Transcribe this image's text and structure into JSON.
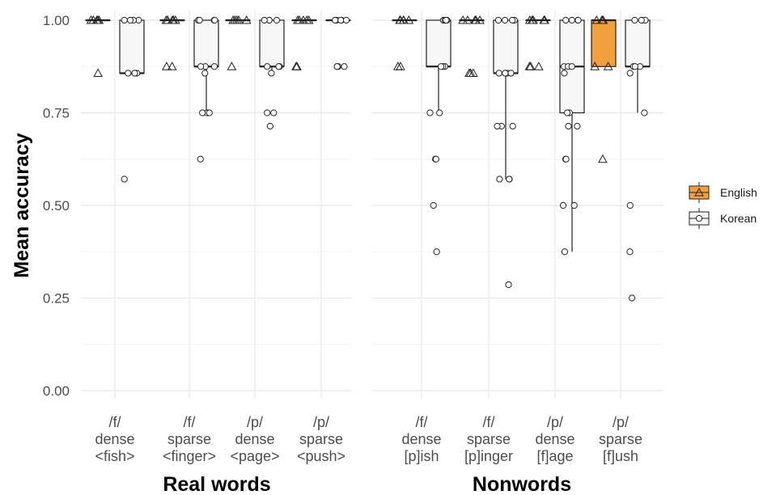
{
  "chart_data": {
    "type": "boxplot",
    "ylabel": "Mean accuracy",
    "ylim": [
      0,
      1.0
    ],
    "yticks": [
      "0.00",
      "0.25",
      "0.50",
      "0.75",
      "1.00"
    ],
    "grid": true,
    "legend_position": "right",
    "series": [
      {
        "name": "English",
        "color": "#f2a03d",
        "marker": "triangle"
      },
      {
        "name": "Korean",
        "color": "#f7f7f7",
        "marker": "circle"
      }
    ],
    "panels": [
      {
        "title": "Real words",
        "categories": [
          {
            "lines": [
              "/f/",
              "dense",
              "<fish>"
            ],
            "English": {
              "q1": 1.0,
              "median": 1.0,
              "q3": 1.0,
              "whisker_low": 1.0,
              "whisker_high": 1.0,
              "points": [
                1,
                1,
                1,
                1,
                1,
                0.857
              ]
            },
            "Korean": {
              "q1": 0.857,
              "median": 0.857,
              "q3": 1.0,
              "whisker_low": 0.857,
              "whisker_high": 1.0,
              "points": [
                1,
                1,
                1,
                1,
                0.857,
                0.857,
                0.857,
                0.571
              ]
            }
          },
          {
            "lines": [
              "/f/",
              "sparse",
              "<finger>"
            ],
            "English": {
              "q1": 1.0,
              "median": 1.0,
              "q3": 1.0,
              "whisker_low": 1.0,
              "whisker_high": 1.0,
              "points": [
                1,
                1,
                1,
                1,
                1,
                0.875,
                0.875
              ]
            },
            "Korean": {
              "q1": 0.875,
              "median": 0.875,
              "q3": 1.0,
              "whisker_low": 0.75,
              "whisker_high": 1.0,
              "points": [
                1,
                1,
                1,
                1,
                0.875,
                0.875,
                0.875,
                0.857,
                0.75,
                0.75,
                0.75,
                0.625
              ]
            }
          },
          {
            "lines": [
              "/p/",
              "dense",
              "<page>"
            ],
            "English": {
              "q1": 1.0,
              "median": 1.0,
              "q3": 1.0,
              "whisker_low": 1.0,
              "whisker_high": 1.0,
              "points": [
                1,
                1,
                1,
                1,
                1,
                0.875
              ]
            },
            "Korean": {
              "q1": 0.875,
              "median": 0.875,
              "q3": 1.0,
              "whisker_low": 0.857,
              "whisker_high": 1.0,
              "points": [
                1,
                1,
                1,
                1,
                0.875,
                0.875,
                0.875,
                0.857,
                0.75,
                0.75,
                0.714
              ]
            }
          },
          {
            "lines": [
              "/p/",
              "sparse",
              "<push>"
            ],
            "English": {
              "q1": 1.0,
              "median": 1.0,
              "q3": 1.0,
              "whisker_low": 1.0,
              "whisker_high": 1.0,
              "points": [
                1,
                1,
                1,
                1,
                1,
                0.875,
                0.875
              ]
            },
            "Korean": {
              "q1": 1.0,
              "median": 1.0,
              "q3": 1.0,
              "whisker_low": 1.0,
              "whisker_high": 1.0,
              "points": [
                1,
                1,
                1,
                1,
                1,
                0.875,
                0.875,
                0.875,
                0.875
              ]
            }
          }
        ]
      },
      {
        "title": "Nonwords",
        "categories": [
          {
            "lines": [
              "/f/",
              "dense",
              "[p]ish"
            ],
            "English": {
              "q1": 1.0,
              "median": 1.0,
              "q3": 1.0,
              "whisker_low": 1.0,
              "whisker_high": 1.0,
              "points": [
                1,
                1,
                1,
                1,
                1,
                0.875,
                0.875
              ]
            },
            "Korean": {
              "q1": 0.875,
              "median": 0.875,
              "q3": 1.0,
              "whisker_low": 0.75,
              "whisker_high": 1.0,
              "points": [
                1,
                1,
                1,
                1,
                0.875,
                0.875,
                0.875,
                0.75,
                0.75,
                0.625,
                0.625,
                0.5,
                0.375
              ]
            }
          },
          {
            "lines": [
              "/f/",
              "sparse",
              "[p]inger"
            ],
            "English": {
              "q1": 1.0,
              "median": 1.0,
              "q3": 1.0,
              "whisker_low": 1.0,
              "whisker_high": 1.0,
              "points": [
                1,
                1,
                1,
                1,
                1,
                0.857,
                0.857,
                0.857
              ]
            },
            "Korean": {
              "q1": 0.857,
              "median": 0.857,
              "q3": 1.0,
              "whisker_low": 0.571,
              "whisker_high": 1.0,
              "points": [
                1,
                1,
                1,
                1,
                0.857,
                0.857,
                0.857,
                0.857,
                0.714,
                0.714,
                0.714,
                0.571,
                0.571,
                0.571,
                0.286
              ]
            }
          },
          {
            "lines": [
              "/p/",
              "dense",
              "[f]age"
            ],
            "English": {
              "q1": 1.0,
              "median": 1.0,
              "q3": 1.0,
              "whisker_low": 1.0,
              "whisker_high": 1.0,
              "points": [
                1,
                1,
                1,
                1,
                1,
                0.875,
                0.875,
                0.875
              ]
            },
            "Korean": {
              "q1": 0.75,
              "median": 0.875,
              "q3": 1.0,
              "whisker_low": 0.375,
              "whisker_high": 1.0,
              "points": [
                1,
                1,
                1,
                1,
                0.875,
                0.875,
                0.875,
                0.857,
                0.75,
                0.75,
                0.714,
                0.714,
                0.625,
                0.625,
                0.5,
                0.5,
                0.375
              ]
            }
          },
          {
            "lines": [
              "/p/",
              "sparse",
              "[f]ush"
            ],
            "English": {
              "q1": 0.875,
              "median": 1.0,
              "q3": 1.0,
              "whisker_low": 0.875,
              "whisker_high": 1.0,
              "points": [
                1,
                1,
                1,
                1,
                0.875,
                0.875,
                0.625
              ]
            },
            "Korean": {
              "q1": 0.875,
              "median": 0.875,
              "q3": 1.0,
              "whisker_low": 0.75,
              "whisker_high": 1.0,
              "points": [
                1,
                1,
                1,
                1,
                0.875,
                0.875,
                0.875,
                0.857,
                0.75,
                0.5,
                0.375,
                0.25
              ]
            }
          }
        ]
      }
    ]
  }
}
